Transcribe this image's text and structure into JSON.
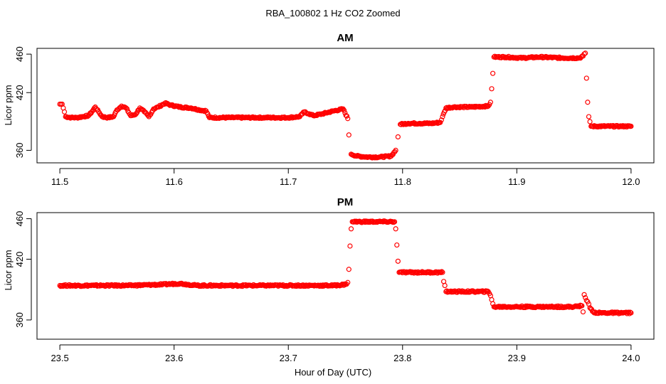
{
  "chart_data": [
    {
      "type": "scatter",
      "title": "AM",
      "xlabel": "",
      "ylabel": "Licor ppm",
      "xlim": [
        11.48,
        12.02
      ],
      "ylim": [
        347,
        466
      ],
      "x_ticks": [
        "11.5",
        "11.6",
        "11.7",
        "11.8",
        "11.9",
        "12.0"
      ],
      "y_ticks": [
        "360",
        "420",
        "460"
      ],
      "marker": "open-circle",
      "color": "#ff0000",
      "series": [
        {
          "values": [
            [
              11.5,
              408
            ],
            [
              11.502,
              408
            ],
            [
              11.503,
              404
            ],
            [
              11.504,
              400
            ],
            [
              11.505,
              395
            ],
            [
              11.51,
              394
            ],
            [
              11.515,
              394
            ],
            [
              11.52,
              395
            ],
            [
              11.525,
              396
            ],
            [
              11.528,
              400
            ],
            [
              11.531,
              405
            ],
            [
              11.534,
              400
            ],
            [
              11.537,
              395
            ],
            [
              11.542,
              394
            ],
            [
              11.547,
              395
            ],
            [
              11.55,
              402
            ],
            [
              11.554,
              406
            ],
            [
              11.558,
              404
            ],
            [
              11.562,
              396
            ],
            [
              11.566,
              397
            ],
            [
              11.57,
              404
            ],
            [
              11.574,
              400
            ],
            [
              11.578,
              395
            ],
            [
              11.582,
              403
            ],
            [
              11.586,
              405
            ],
            [
              11.592,
              409
            ],
            [
              11.597,
              407
            ],
            [
              11.605,
              405
            ],
            [
              11.615,
              404
            ],
            [
              11.622,
              402
            ],
            [
              11.628,
              401
            ],
            [
              11.631,
              394
            ],
            [
              11.65,
              394
            ],
            [
              11.68,
              394
            ],
            [
              11.7,
              394
            ],
            [
              11.71,
              395
            ],
            [
              11.714,
              400
            ],
            [
              11.718,
              398
            ],
            [
              11.722,
              396
            ],
            [
              11.73,
              398
            ],
            [
              11.74,
              401
            ],
            [
              11.748,
              403
            ],
            [
              11.752,
              393
            ],
            [
              11.753,
              376
            ],
            [
              11.755,
              356
            ],
            [
              11.76,
              354
            ],
            [
              11.77,
              353
            ],
            [
              11.78,
              353
            ],
            [
              11.79,
              354
            ],
            [
              11.794,
              360
            ],
            [
              11.796,
              374
            ],
            [
              11.798,
              387
            ],
            [
              11.805,
              388
            ],
            [
              11.815,
              388
            ],
            [
              11.825,
              388
            ],
            [
              11.833,
              389
            ],
            [
              11.835,
              395
            ],
            [
              11.838,
              404
            ],
            [
              11.845,
              405
            ],
            [
              11.86,
              405
            ],
            [
              11.875,
              406
            ],
            [
              11.877,
              410
            ],
            [
              11.878,
              424
            ],
            [
              11.879,
              440
            ],
            [
              11.88,
              457
            ],
            [
              11.89,
              457
            ],
            [
              11.905,
              456
            ],
            [
              11.92,
              457
            ],
            [
              11.94,
              456
            ],
            [
              11.955,
              456
            ],
            [
              11.958,
              458
            ],
            [
              11.96,
              461
            ],
            [
              11.961,
              435
            ],
            [
              11.962,
              410
            ],
            [
              11.963,
              395
            ],
            [
              11.965,
              385
            ],
            [
              11.975,
              385
            ],
            [
              11.99,
              385
            ],
            [
              12.0,
              385
            ]
          ]
        }
      ]
    },
    {
      "type": "scatter",
      "title": "PM",
      "xlabel": "Hour of Day (UTC)",
      "ylabel": "Licor ppm",
      "xlim": [
        23.48,
        24.02
      ],
      "ylim": [
        341,
        466
      ],
      "x_ticks": [
        "23.5",
        "23.6",
        "23.7",
        "23.8",
        "23.9",
        "24.0"
      ],
      "y_ticks": [
        "360",
        "420",
        "460"
      ],
      "marker": "open-circle",
      "color": "#ff0000",
      "series": [
        {
          "values": [
            [
              23.5,
              394
            ],
            [
              23.53,
              394
            ],
            [
              23.56,
              394
            ],
            [
              23.59,
              395
            ],
            [
              23.605,
              396
            ],
            [
              23.62,
              394
            ],
            [
              23.65,
              394
            ],
            [
              23.68,
              394
            ],
            [
              23.71,
              394
            ],
            [
              23.74,
              394
            ],
            [
              23.75,
              395
            ],
            [
              23.752,
              397
            ],
            [
              23.753,
              410
            ],
            [
              23.754,
              433
            ],
            [
              23.755,
              450
            ],
            [
              23.756,
              457
            ],
            [
              23.765,
              457
            ],
            [
              23.775,
              457
            ],
            [
              23.785,
              457
            ],
            [
              23.793,
              457
            ],
            [
              23.794,
              450
            ],
            [
              23.795,
              434
            ],
            [
              23.796,
              418
            ],
            [
              23.797,
              407
            ],
            [
              23.805,
              407
            ],
            [
              23.82,
              407
            ],
            [
              23.835,
              407
            ],
            [
              23.836,
              398
            ],
            [
              23.837,
              394
            ],
            [
              23.838,
              388
            ],
            [
              23.845,
              388
            ],
            [
              23.86,
              388
            ],
            [
              23.875,
              388
            ],
            [
              23.877,
              384
            ],
            [
              23.878,
              380
            ],
            [
              23.879,
              376
            ],
            [
              23.88,
              373
            ],
            [
              23.89,
              373
            ],
            [
              23.91,
              373
            ],
            [
              23.93,
              373
            ],
            [
              23.95,
              373
            ],
            [
              23.957,
              374
            ],
            [
              23.958,
              368
            ],
            [
              23.959,
              385
            ],
            [
              23.96,
              382
            ],
            [
              23.962,
              378
            ],
            [
              23.964,
              372
            ],
            [
              23.967,
              368
            ],
            [
              23.97,
              367
            ],
            [
              23.98,
              367
            ],
            [
              23.99,
              367
            ],
            [
              24.0,
              367
            ]
          ]
        }
      ]
    }
  ],
  "figure": {
    "title": "RBA_100802  1 Hz CO2 Zoomed"
  }
}
